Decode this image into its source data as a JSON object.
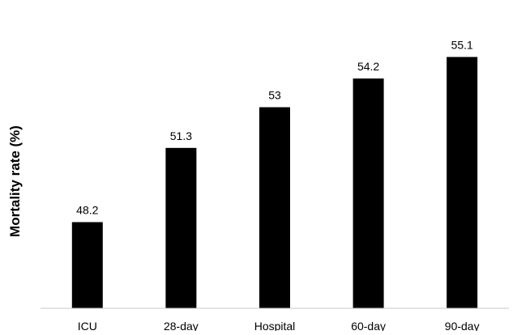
{
  "chart_data": {
    "type": "bar",
    "title": "",
    "xlabel": "",
    "ylabel": "Mortality rate (%)",
    "categories": [
      "ICU",
      "28-day",
      "Hospital",
      "60-day",
      "90-day"
    ],
    "values": [
      48.2,
      51.3,
      53,
      54.2,
      55.1
    ],
    "data_labels": [
      "48.2",
      "51.3",
      "53",
      "54.2",
      "55.1"
    ],
    "ylim": [
      44.6,
      56.6
    ],
    "bar_color": "#000000",
    "axis_color": "#c8c8c8",
    "grid": false,
    "legend": "none"
  }
}
